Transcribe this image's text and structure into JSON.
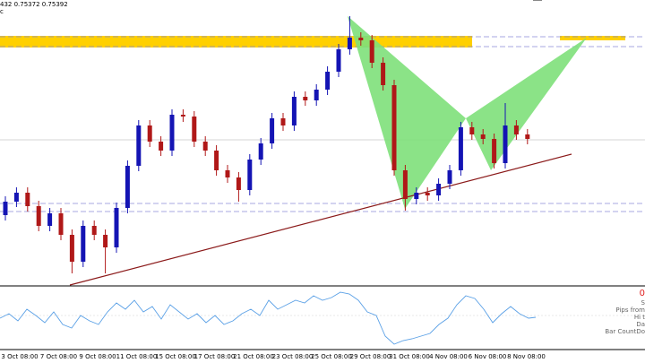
{
  "chart_data": {
    "type": "candlestick",
    "title": "432 0.75372 0.75392",
    "subtitle": "c",
    "up_color": "#1414b4",
    "down_color": "#b01818",
    "ylim": [
      0.738,
      0.7698
    ],
    "open": [
      0.7458,
      0.7473,
      0.7483,
      0.7468,
      0.7446,
      0.746,
      0.7436,
      0.7406,
      0.7446,
      0.7436,
      0.7422,
      0.7466,
      0.7513,
      0.7558,
      0.754,
      0.753,
      0.757,
      0.7568,
      0.754,
      0.753,
      0.7508,
      0.75,
      0.7486,
      0.752,
      0.7538,
      0.7566,
      0.7558,
      0.759,
      0.7586,
      0.7598,
      0.7618,
      0.7643,
      0.7656,
      0.7653,
      0.7628,
      0.7603,
      0.7508,
      0.7476,
      0.7483,
      0.748,
      0.7493,
      0.7508,
      0.7556,
      0.7548,
      0.7543,
      0.7516,
      0.7558,
      0.7548
    ],
    "high": [
      0.7479,
      0.7489,
      0.7489,
      0.7474,
      0.7466,
      0.7466,
      0.7442,
      0.7452,
      0.7452,
      0.7442,
      0.7472,
      0.7519,
      0.7564,
      0.7564,
      0.7546,
      0.7576,
      0.7576,
      0.7574,
      0.7546,
      0.7536,
      0.7514,
      0.7506,
      0.7526,
      0.7544,
      0.7572,
      0.7572,
      0.7596,
      0.7596,
      0.7604,
      0.7624,
      0.7649,
      0.768,
      0.7662,
      0.7659,
      0.7634,
      0.7609,
      0.7514,
      0.7489,
      0.7489,
      0.7499,
      0.7514,
      0.7562,
      0.7562,
      0.7554,
      0.7549,
      0.7583,
      0.7564,
      0.7554
    ],
    "low": [
      0.7452,
      0.7467,
      0.7462,
      0.744,
      0.744,
      0.743,
      0.7393,
      0.74,
      0.743,
      0.7393,
      0.7416,
      0.746,
      0.7507,
      0.7534,
      0.7524,
      0.7524,
      0.7562,
      0.7534,
      0.7524,
      0.7502,
      0.7494,
      0.7473,
      0.748,
      0.7514,
      0.7532,
      0.7552,
      0.7552,
      0.758,
      0.758,
      0.7592,
      0.7612,
      0.7637,
      0.7647,
      0.7622,
      0.7597,
      0.7502,
      0.7463,
      0.747,
      0.7474,
      0.7474,
      0.7487,
      0.7502,
      0.7542,
      0.7537,
      0.751,
      0.751,
      0.7542,
      0.7537
    ],
    "close": [
      0.7473,
      0.7483,
      0.7468,
      0.7446,
      0.746,
      0.7436,
      0.7406,
      0.7446,
      0.7436,
      0.7422,
      0.7466,
      0.7513,
      0.7558,
      0.754,
      0.753,
      0.757,
      0.7568,
      0.754,
      0.753,
      0.7508,
      0.75,
      0.7486,
      0.752,
      0.7538,
      0.7566,
      0.7558,
      0.759,
      0.7586,
      0.7598,
      0.7618,
      0.7643,
      0.7656,
      0.7653,
      0.7628,
      0.7603,
      0.7508,
      0.7476,
      0.7483,
      0.748,
      0.7493,
      0.7508,
      0.7556,
      0.7548,
      0.7543,
      0.7516,
      0.7558,
      0.7548,
      0.7543
    ],
    "x_labels": [
      "3 Oct 08:00",
      "7 Oct 08:00",
      "9 Oct 08:00",
      "11 Oct 08:00",
      "15 Oct 08:00",
      "17 Oct 08:00",
      "21 Oct 08:00",
      "23 Oct 08:00",
      "25 Oct 08:00",
      "29 Oct 08:00",
      "31 Oct 08:00",
      "4 Nov 08:00",
      "6 Nov 08:00",
      "8 Nov 08:00"
    ],
    "annotations": [
      "0",
      "S",
      "Pips from",
      "Hi t",
      "Da",
      "Bar CountDo"
    ]
  }
}
